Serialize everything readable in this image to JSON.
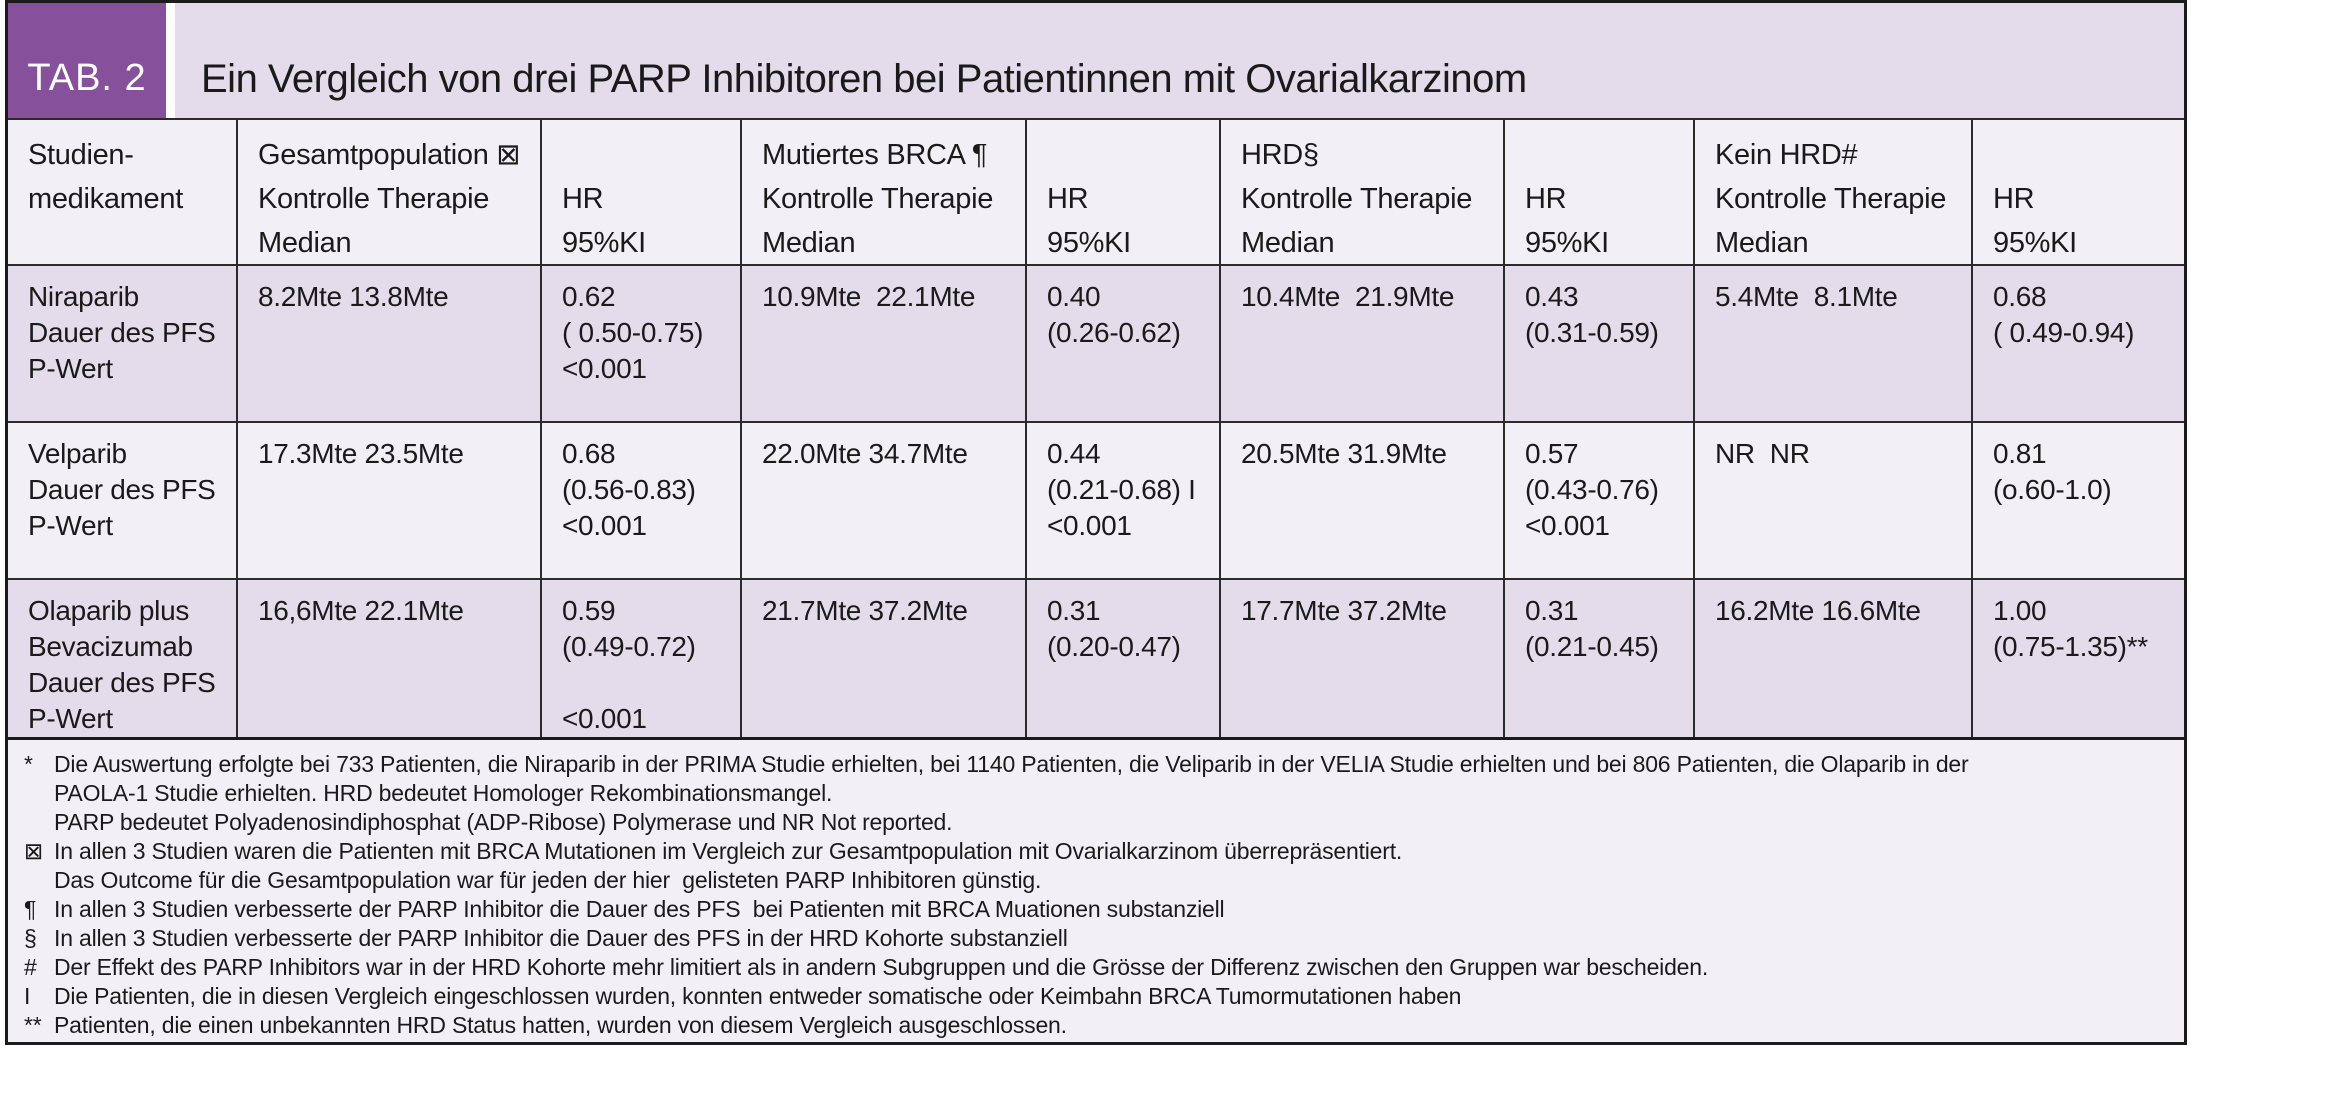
{
  "table": {
    "tab_label": "TAB. 2",
    "title": "Ein Vergleich von drei PARP Inhibitoren bei Patientinnen mit Ovarialkarzinom",
    "columns": [
      {
        "lines": [
          "Studien-",
          "medikament",
          ""
        ]
      },
      {
        "lines": [
          "Gesamtpopulation ⊠",
          "Kontrolle Therapie",
          "Median"
        ]
      },
      {
        "lines": [
          "",
          "HR",
          "95%KI"
        ]
      },
      {
        "lines": [
          "Mutiertes BRCA ¶",
          "Kontrolle Therapie",
          "Median"
        ]
      },
      {
        "lines": [
          "",
          "HR",
          "95%KI"
        ]
      },
      {
        "lines": [
          "HRD§",
          "Kontrolle Therapie",
          "Median"
        ]
      },
      {
        "lines": [
          "",
          "HR",
          "95%KI"
        ]
      },
      {
        "lines": [
          "Kein HRD#",
          "Kontrolle Therapie",
          "Median"
        ]
      },
      {
        "lines": [
          "",
          "HR",
          "95%KI"
        ]
      }
    ],
    "rows": [
      {
        "cells": [
          [
            "Niraparib",
            "Dauer des PFS",
            "P-Wert"
          ],
          [
            "8.2Mte 13.8Mte"
          ],
          [
            "0.62",
            "( 0.50-0.75)",
            "<0.001"
          ],
          [
            "10.9Mte  22.1Mte"
          ],
          [
            "0.40",
            "(0.26-0.62)"
          ],
          [
            "10.4Mte  21.9Mte"
          ],
          [
            "0.43",
            "(0.31-0.59)"
          ],
          [
            "5.4Mte  8.1Mte"
          ],
          [
            "0.68",
            "( 0.49-0.94)"
          ]
        ]
      },
      {
        "cells": [
          [
            "Velparib",
            "Dauer des PFS",
            "P-Wert"
          ],
          [
            "17.3Mte 23.5Mte"
          ],
          [
            "0.68",
            "(0.56-0.83)",
            "<0.001"
          ],
          [
            "22.0Mte 34.7Mte"
          ],
          [
            "0.44",
            "(0.21-0.68) I",
            "<0.001"
          ],
          [
            "20.5Mte 31.9Mte"
          ],
          [
            "0.57",
            "(0.43-0.76)",
            "<0.001"
          ],
          [
            "NR  NR"
          ],
          [
            "0.81",
            "(o.60-1.0)"
          ]
        ]
      },
      {
        "cells": [
          [
            "Olaparib plus",
            "Bevacizumab",
            "Dauer des PFS",
            "P-Wert"
          ],
          [
            "16,6Mte 22.1Mte"
          ],
          [
            "0.59",
            "(0.49-0.72)",
            "",
            "<0.001"
          ],
          [
            "21.7Mte 37.2Mte"
          ],
          [
            "0.31",
            "(0.20-0.47)"
          ],
          [
            "17.7Mte 37.2Mte"
          ],
          [
            "0.31",
            "(0.21-0.45)"
          ],
          [
            "16.2Mte 16.6Mte"
          ],
          [
            "1.00",
            "(0.75-1.35)**"
          ]
        ]
      }
    ],
    "footnotes": [
      {
        "marker": "*",
        "text": "Die Auswertung erfolgte bei 733 Patienten, die Niraparib in der PRIMA Studie erhielten, bei 1140 Patienten, die Veliparib in der VELIA Studie erhielten und bei 806 Patienten, die Olaparib in der"
      },
      {
        "marker": "",
        "text": "PAOLA-1 Studie erhielten. HRD bedeutet Homologer Rekombinationsmangel."
      },
      {
        "marker": "",
        "text": "PARP bedeutet Polyadenosindiphosphat (ADP-Ribose) Polymerase und NR Not reported."
      },
      {
        "marker": "⊠",
        "text": "In allen 3 Studien waren die Patienten mit BRCA Mutationen im Vergleich zur Gesamtpopulation mit Ovarialkarzinom überrepräsentiert."
      },
      {
        "marker": "",
        "text": "Das Outcome für die Gesamtpopulation war für jeden der hier  gelisteten PARP Inhibitoren günstig."
      },
      {
        "marker": "¶",
        "text": "In allen 3 Studien verbesserte der PARP Inhibitor die Dauer des PFS  bei Patienten mit BRCA Muationen substanziell"
      },
      {
        "marker": "§",
        "text": "In allen 3 Studien verbesserte der PARP Inhibitor die Dauer des PFS in der HRD Kohorte substanziell"
      },
      {
        "marker": "#",
        "text": "Der Effekt des PARP Inhibitors war in der HRD Kohorte mehr limitiert als in andern Subgruppen und die Grösse der Differenz zwischen den Gruppen war bescheiden."
      },
      {
        "marker": "I",
        "text": "Die Patienten, die in diesen Vergleich eingeschlossen wurden, konnten entweder somatische oder Keimbahn BRCA Tumormutationen haben"
      },
      {
        "marker": "**",
        "text": "Patienten, die einen unbekannten HRD Status hatten, wurden von diesem Vergleich ausgeschlossen."
      }
    ]
  },
  "colors": {
    "accent_purple": "#86509B",
    "band_lavender": "#E4DCEB",
    "row_light": "#F2F0F6",
    "border_black": "#1B1B1B"
  }
}
